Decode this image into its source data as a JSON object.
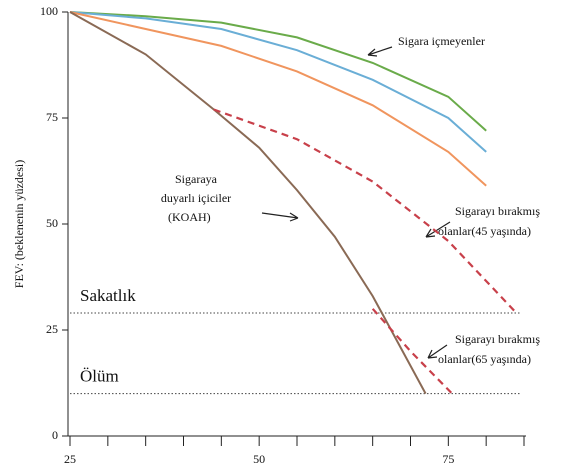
{
  "chart_data": {
    "type": "line",
    "y_label": "FEV: (beklenenin yüzdesi)",
    "xlim": [
      25,
      85
    ],
    "ylim": [
      0,
      100
    ],
    "xticks": [
      25,
      50,
      75
    ],
    "xticks_minor": [
      30,
      35,
      40,
      45,
      55,
      60,
      65,
      70,
      80,
      85
    ],
    "yticks": [
      0,
      25,
      50,
      75,
      100
    ],
    "series": [
      {
        "color": "#6aab4a",
        "dashed": false,
        "x": [
          25,
          35,
          45,
          55,
          65,
          75,
          80
        ],
        "values": [
          100,
          99,
          97.5,
          94,
          88,
          80,
          72
        ]
      },
      {
        "color": "#6aaed6",
        "dashed": false,
        "x": [
          25,
          35,
          45,
          55,
          65,
          75,
          80
        ],
        "values": [
          100,
          98.5,
          96,
          91,
          84,
          75,
          67
        ]
      },
      {
        "color": "#f0955e",
        "dashed": false,
        "x": [
          25,
          35,
          45,
          55,
          65,
          75,
          80
        ],
        "values": [
          100,
          96,
          92,
          86,
          78,
          67,
          59
        ]
      },
      {
        "color": "#8a6a55",
        "dashed": false,
        "x": [
          25,
          35,
          44,
          50,
          55,
          60,
          65,
          72
        ],
        "values": [
          100,
          90,
          77,
          68,
          58,
          47,
          33,
          10
        ]
      },
      {
        "color": "#c8404a",
        "dashed": true,
        "x": [
          44,
          55,
          65,
          75,
          84
        ],
        "values": [
          77,
          70,
          60,
          46,
          29
        ]
      },
      {
        "color": "#c8404a",
        "dashed": true,
        "x": [
          65,
          70,
          75.5
        ],
        "values": [
          30,
          20,
          10
        ]
      }
    ],
    "reference_lines": [
      {
        "value": 29,
        "label": "Sakatlık"
      },
      {
        "value": 10,
        "label": "Ölüm"
      }
    ],
    "annotations": [
      {
        "lines": [
          "Sigara içmeyenler"
        ]
      },
      {
        "lines": [
          "Sigaraya",
          "duyarlı içiciler",
          "(KOAH)"
        ]
      },
      {
        "lines": [
          "Sigarayı bırakmış",
          "olanlar(45 yaşında)"
        ]
      },
      {
        "lines": [
          "Sigarayı bırakmış",
          "olanlar(65 yaşında)"
        ]
      }
    ]
  }
}
